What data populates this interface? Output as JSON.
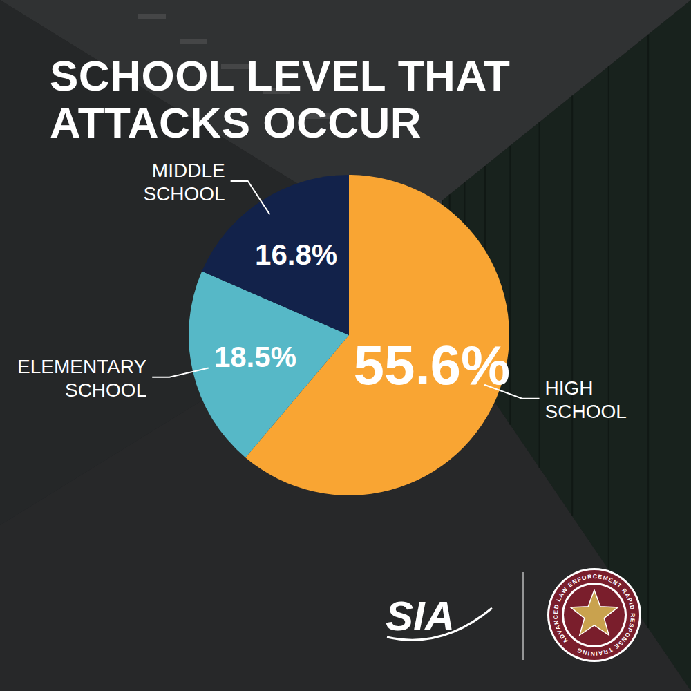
{
  "chart_data": {
    "type": "pie",
    "title": "SCHOOL LEVEL THAT ATTACKS OCCUR",
    "categories": [
      "HIGH SCHOOL",
      "ELEMENTARY SCHOOL",
      "MIDDLE SCHOOL"
    ],
    "values": [
      55.6,
      18.5,
      16.8
    ],
    "value_labels": [
      "55.6%",
      "18.5%",
      "16.8%"
    ],
    "colors": [
      "#f9a533",
      "#56b8c7",
      "#12224a"
    ],
    "data_labels": true
  },
  "branding": [
    "SIA",
    "ADVANCED LAW ENFORCEMENT RAPID RESPONSE TRAINING"
  ]
}
